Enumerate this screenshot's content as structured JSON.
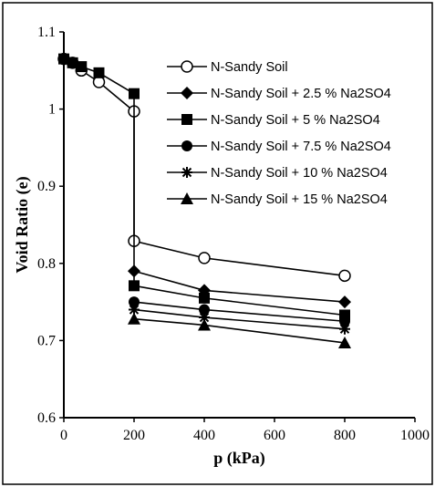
{
  "chart_data": {
    "type": "line",
    "title": "",
    "xlabel": "p (kPa)",
    "ylabel": "Void Ratio (e)",
    "xlim": [
      0,
      1000
    ],
    "ylim": [
      0.6,
      1.1
    ],
    "x_ticks": [
      "0",
      "200",
      "400",
      "600",
      "800",
      "1000"
    ],
    "y_ticks": [
      "0.6",
      "0.7",
      "0.8",
      "0.9",
      "1",
      "1.1"
    ],
    "grid": false,
    "legend_position": "top-right",
    "series": [
      {
        "name": "N-Sandy Soil",
        "marker": "circle-open",
        "x": [
          0,
          25,
          50,
          100,
          200,
          200,
          400,
          800
        ],
        "y": [
          1.065,
          1.06,
          1.05,
          1.035,
          0.997,
          0.829,
          0.807,
          0.784
        ]
      },
      {
        "name": "N-Sandy Soil + 2.5 % Na2SO4",
        "marker": "diamond",
        "x": [
          200,
          400,
          800
        ],
        "y": [
          0.79,
          0.765,
          0.75
        ]
      },
      {
        "name": "N-Sandy Soil + 5 % Na2SO4",
        "marker": "square",
        "x": [
          0,
          25,
          50,
          100,
          200,
          200,
          400,
          800
        ],
        "y": [
          1.065,
          1.06,
          1.055,
          1.047,
          1.02,
          0.771,
          0.755,
          0.733
        ]
      },
      {
        "name": "N-Sandy Soil + 7.5 % Na2SO4",
        "marker": "circle",
        "x": [
          200,
          400,
          800
        ],
        "y": [
          0.75,
          0.74,
          0.725
        ]
      },
      {
        "name": "N-Sandy Soil + 10 % Na2SO4",
        "marker": "star",
        "x": [
          200,
          400,
          800
        ],
        "y": [
          0.74,
          0.73,
          0.715
        ]
      },
      {
        "name": "N-Sandy Soil + 15 % Na2SO4",
        "marker": "triangle",
        "x": [
          200,
          400,
          800
        ],
        "y": [
          0.728,
          0.72,
          0.697
        ]
      }
    ]
  }
}
